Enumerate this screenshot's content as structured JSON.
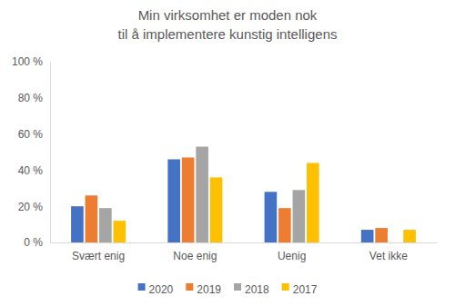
{
  "chart_data": {
    "type": "bar",
    "title": [
      "Min virksomhet er moden nok",
      "til å implementere kunstig intelligens"
    ],
    "categories": [
      "Svært enig",
      "Noe enig",
      "Uenig",
      "Vet ikke"
    ],
    "series": [
      {
        "name": "2020",
        "color": "#4472c4",
        "values": [
          20,
          46,
          28,
          7
        ]
      },
      {
        "name": "2019",
        "color": "#ed7d31",
        "values": [
          26,
          47,
          19,
          8
        ]
      },
      {
        "name": "2018",
        "color": "#a5a5a5",
        "values": [
          19,
          53,
          29,
          0
        ]
      },
      {
        "name": "2017",
        "color": "#ffc000",
        "values": [
          12,
          36,
          44,
          7
        ]
      }
    ],
    "ylim": [
      0,
      100
    ],
    "yticks": [
      {
        "value": 0,
        "label": "0 %"
      },
      {
        "value": 20,
        "label": "20 %"
      },
      {
        "value": 40,
        "label": "40 %"
      },
      {
        "value": 60,
        "label": "60 %"
      },
      {
        "value": 80,
        "label": "80 %"
      },
      {
        "value": 100,
        "label": "100 %"
      }
    ],
    "grid": false,
    "legend": "bottom"
  }
}
